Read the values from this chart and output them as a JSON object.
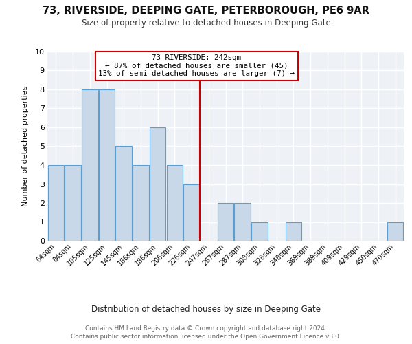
{
  "title": "73, RIVERSIDE, DEEPING GATE, PETERBOROUGH, PE6 9AR",
  "subtitle": "Size of property relative to detached houses in Deeping Gate",
  "xlabel": "Distribution of detached houses by size in Deeping Gate",
  "ylabel": "Number of detached properties",
  "footer_line1": "Contains HM Land Registry data © Crown copyright and database right 2024.",
  "footer_line2": "Contains public sector information licensed under the Open Government Licence v3.0.",
  "categories": [
    "64sqm",
    "84sqm",
    "105sqm",
    "125sqm",
    "145sqm",
    "166sqm",
    "186sqm",
    "206sqm",
    "226sqm",
    "247sqm",
    "267sqm",
    "287sqm",
    "308sqm",
    "328sqm",
    "348sqm",
    "369sqm",
    "389sqm",
    "409sqm",
    "429sqm",
    "450sqm",
    "470sqm"
  ],
  "values": [
    4,
    4,
    8,
    8,
    5,
    4,
    6,
    4,
    3,
    0,
    2,
    2,
    1,
    0,
    1,
    0,
    0,
    0,
    0,
    0,
    1
  ],
  "bar_color": "#c8d8e8",
  "bar_edge_color": "#5a9fd4",
  "ylim": [
    0,
    10
  ],
  "vline_x": 8.5,
  "property_line_label": "73 RIVERSIDE: 242sqm",
  "property_line_label2": "← 87% of detached houses are smaller (45)",
  "property_line_label3": "13% of semi-detached houses are larger (7) →",
  "vline_color": "#cc0000",
  "background_color": "#eef2f7",
  "grid_color": "#ffffff"
}
